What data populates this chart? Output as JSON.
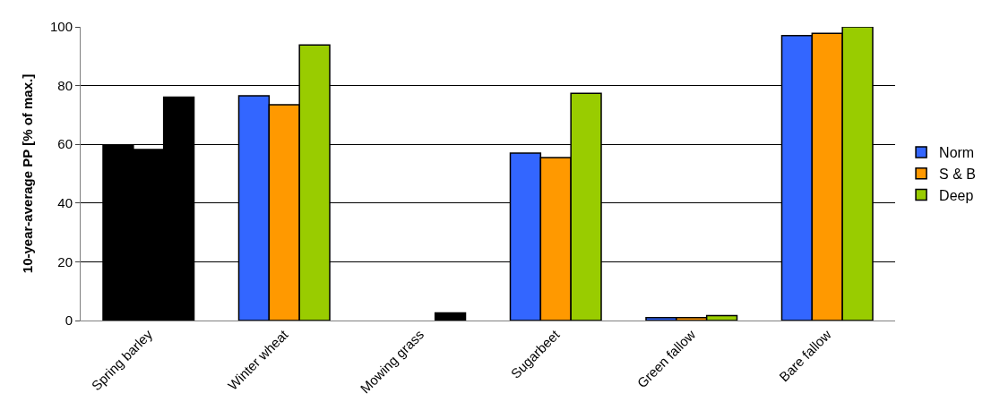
{
  "chart_data": {
    "type": "bar",
    "ylabel": "10-year-average PP [% of max.]",
    "categories": [
      "Spring barley",
      "Winter wheat",
      "Mowing grass",
      "Sugarbeet",
      "Green fallow",
      "Bare fallow"
    ],
    "series": [
      {
        "name": "Norm",
        "color": "#3366ff",
        "colors": [
          "#000000",
          "#3366ff",
          "#3366ff",
          "#3366ff",
          "#3366ff",
          "#3366ff"
        ],
        "values": [
          59.6,
          76.5,
          null,
          57,
          1,
          97
        ]
      },
      {
        "name": "S & B",
        "color": "#ff9900",
        "colors": [
          "#000000",
          "#ff9900",
          "#ff9900",
          "#ff9900",
          "#ff9900",
          "#ff9900"
        ],
        "values": [
          58.2,
          73.5,
          null,
          55.5,
          1,
          97.8
        ]
      },
      {
        "name": "Deep",
        "color": "#99cc00",
        "colors": [
          "#000000",
          "#99cc00",
          "#000000",
          "#99cc00",
          "#99cc00",
          "#99cc00"
        ],
        "values": [
          76.1,
          93.8,
          2.6,
          77.4,
          1.7,
          100
        ]
      }
    ],
    "ylim": [
      0,
      100
    ],
    "yticks": [
      0,
      20,
      40,
      60,
      80,
      100
    ],
    "grid": "y",
    "legend": "right"
  }
}
